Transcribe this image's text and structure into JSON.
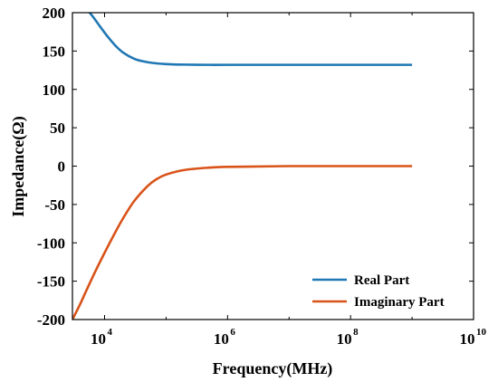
{
  "chart_data": {
    "type": "line",
    "title": "",
    "xlabel": "Frequency(MHz)",
    "ylabel": "Impedance(Ω)",
    "xscale": "log",
    "xlim": [
      3000,
      10000000000
    ],
    "ylim": [
      -200,
      200
    ],
    "grid": false,
    "legend_position": "bottom-right",
    "x_ticks": [
      {
        "value": 10000,
        "base": "10",
        "exp": "4"
      },
      {
        "value": 1000000,
        "base": "10",
        "exp": "6"
      },
      {
        "value": 100000000,
        "base": "10",
        "exp": "8"
      },
      {
        "value": 10000000000,
        "base": "10",
        "exp": "10"
      }
    ],
    "y_ticks": [
      200,
      150,
      100,
      50,
      0,
      -50,
      -100,
      -150,
      -200
    ],
    "series": [
      {
        "name": "Real Part",
        "color": "#1f77b4",
        "points": [
          [
            5000,
            205
          ],
          [
            6000,
            198
          ],
          [
            7000,
            191
          ],
          [
            8000,
            184.5
          ],
          [
            10000,
            174
          ],
          [
            12000,
            166
          ],
          [
            15000,
            157
          ],
          [
            20000,
            148
          ],
          [
            30000,
            140
          ],
          [
            40000,
            137
          ],
          [
            60000,
            134.5
          ],
          [
            100000,
            133
          ],
          [
            200000,
            132.3
          ],
          [
            500000,
            132
          ],
          [
            1000000,
            132
          ],
          [
            10000000,
            132
          ],
          [
            100000000,
            132
          ],
          [
            1000000000,
            132
          ]
        ]
      },
      {
        "name": "Imaginary Part",
        "color": "#d95319",
        "points": [
          [
            3000,
            -200
          ],
          [
            4000,
            -180
          ],
          [
            5000,
            -163
          ],
          [
            7000,
            -138
          ],
          [
            10000,
            -113
          ],
          [
            15000,
            -86
          ],
          [
            20000,
            -68
          ],
          [
            30000,
            -46
          ],
          [
            50000,
            -26
          ],
          [
            70000,
            -17
          ],
          [
            100000,
            -11
          ],
          [
            200000,
            -5
          ],
          [
            500000,
            -2
          ],
          [
            1000000,
            -1
          ],
          [
            5000000,
            -0.3
          ],
          [
            10000000,
            0
          ],
          [
            100000000,
            0
          ],
          [
            1000000000,
            0
          ]
        ]
      }
    ]
  }
}
